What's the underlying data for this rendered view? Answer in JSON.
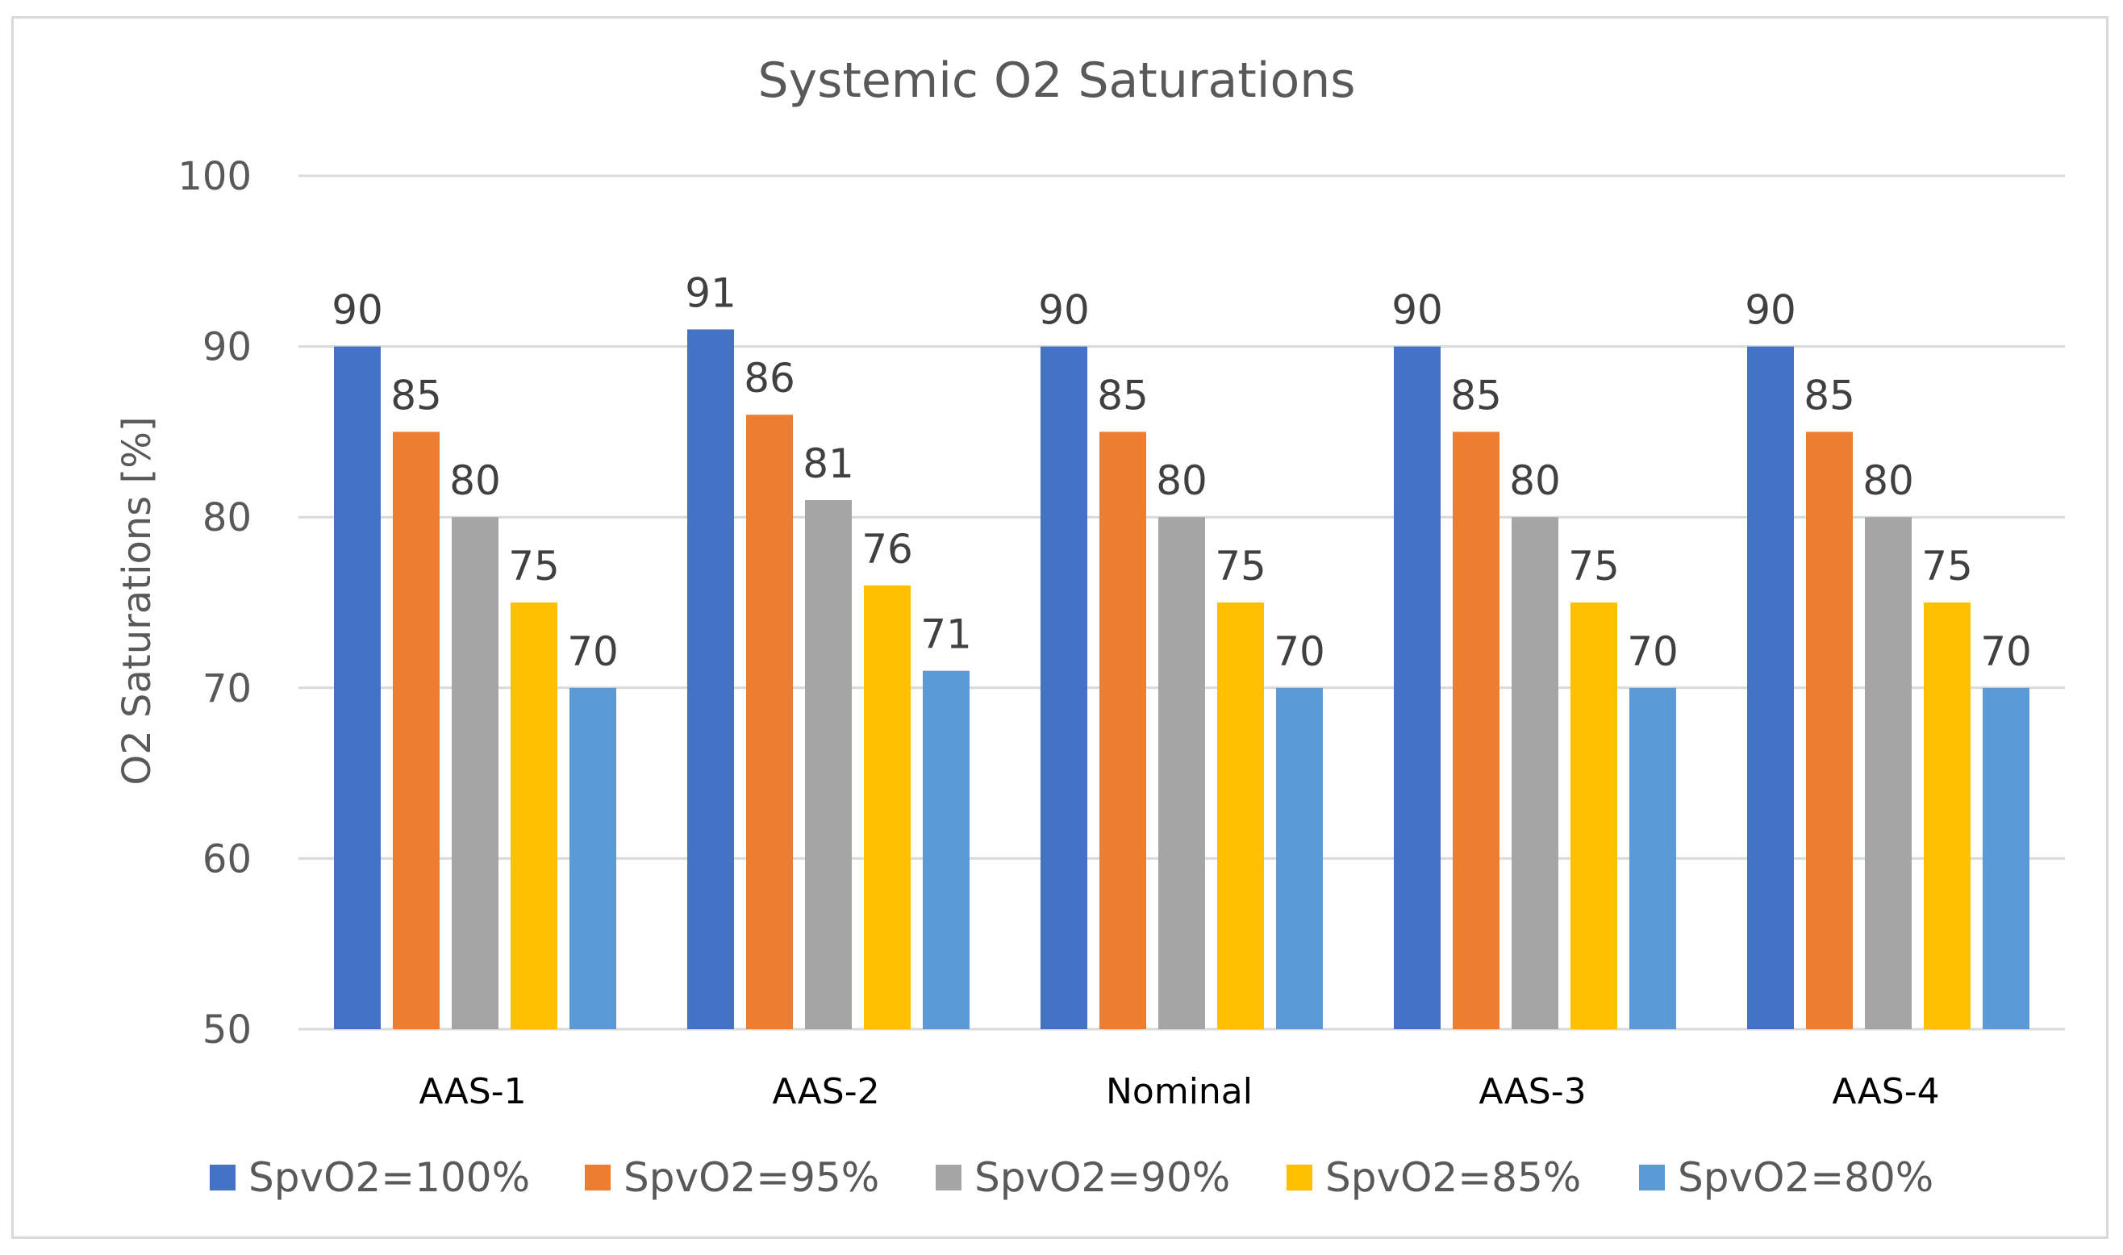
{
  "chart_data": {
    "type": "bar",
    "title": "Systemic O2 Saturations",
    "ylabel": "O2 Saturations [%]",
    "xlabel": "",
    "ylim": [
      50,
      100
    ],
    "yticks": [
      50,
      60,
      70,
      80,
      90,
      100
    ],
    "grid": true,
    "legend_position": "bottom",
    "categories": [
      "AAS-1",
      "AAS-2",
      "Nominal",
      "AAS-3",
      "AAS-4"
    ],
    "series": [
      {
        "name": "SpvO2=100%",
        "color": "#4472C4",
        "values": [
          90,
          91,
          90,
          90,
          90
        ]
      },
      {
        "name": "SpvO2=95%",
        "color": "#ED7D31",
        "values": [
          85,
          86,
          85,
          85,
          85
        ]
      },
      {
        "name": "SpvO2=90%",
        "color": "#A5A5A5",
        "values": [
          80,
          81,
          80,
          80,
          80
        ]
      },
      {
        "name": "SpvO2=85%",
        "color": "#FFC000",
        "values": [
          75,
          76,
          75,
          75,
          75
        ]
      },
      {
        "name": "SpvO2=80%",
        "color": "#5B9BD5",
        "values": [
          70,
          71,
          70,
          70,
          70
        ]
      }
    ]
  }
}
